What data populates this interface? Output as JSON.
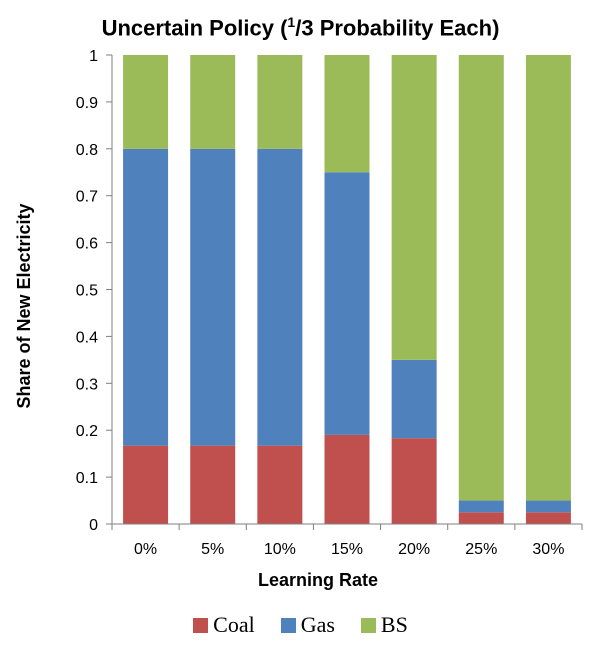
{
  "chart_data": {
    "type": "bar",
    "stacked": true,
    "title_prefix": "Uncertain Policy (",
    "title_sup": "1",
    "title_sub": "/3",
    "title_suffix": " Probability Each)",
    "xlabel": "Learning Rate",
    "ylabel": "Share of New Electricity",
    "categories": [
      "0%",
      "5%",
      "10%",
      "15%",
      "20%",
      "25%",
      "30%"
    ],
    "ylim": [
      0,
      1
    ],
    "yticks": [
      "0",
      "0.1",
      "0.2",
      "0.3",
      "0.4",
      "0.5",
      "0.6",
      "0.7",
      "0.8",
      "0.9",
      "1"
    ],
    "grid": false,
    "legend_position": "bottom",
    "series": [
      {
        "name": "Coal",
        "color": "#c0504d",
        "values": [
          0.167,
          0.167,
          0.167,
          0.19,
          0.183,
          0.025,
          0.025
        ]
      },
      {
        "name": "Gas",
        "color": "#4f81bd",
        "values": [
          0.633,
          0.633,
          0.633,
          0.56,
          0.167,
          0.025,
          0.025
        ]
      },
      {
        "name": "BS",
        "color": "#9bbb59",
        "values": [
          0.2,
          0.2,
          0.2,
          0.25,
          0.65,
          0.95,
          0.95
        ]
      }
    ]
  }
}
